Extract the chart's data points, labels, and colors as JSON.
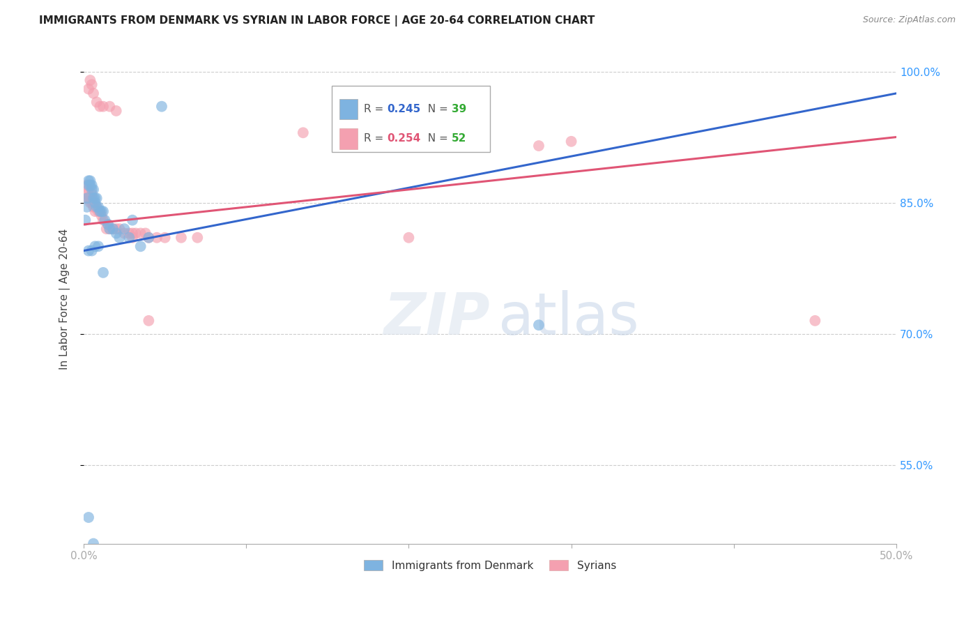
{
  "title": "IMMIGRANTS FROM DENMARK VS SYRIAN IN LABOR FORCE | AGE 20-64 CORRELATION CHART",
  "source": "Source: ZipAtlas.com",
  "ylabel": "In Labor Force | Age 20-64",
  "xlim": [
    0.0,
    0.5
  ],
  "ylim": [
    0.46,
    1.02
  ],
  "ytick_labels": [
    "100.0%",
    "85.0%",
    "70.0%",
    "55.0%"
  ],
  "ytick_positions": [
    1.0,
    0.85,
    0.7,
    0.55
  ],
  "xtick_positions": [
    0.0,
    0.1,
    0.2,
    0.3,
    0.4,
    0.5
  ],
  "xtick_labels": [
    "0.0%",
    "",
    "",
    "",
    "",
    "50.0%"
  ],
  "grid_color": "#cccccc",
  "background_color": "#ffffff",
  "denmark_color": "#7eb3e0",
  "syrian_color": "#f4a0b0",
  "denmark_line_color": "#3366cc",
  "syrian_line_color": "#e05575",
  "denmark_R": 0.245,
  "denmark_N": 39,
  "syrian_R": 0.254,
  "syrian_N": 52,
  "denmark_line_x": [
    0.0,
    0.5
  ],
  "denmark_line_y": [
    0.795,
    0.975
  ],
  "syrian_line_x": [
    0.0,
    0.5
  ],
  "syrian_line_y": [
    0.825,
    0.925
  ],
  "denmark_scatter_x": [
    0.001,
    0.002,
    0.002,
    0.003,
    0.003,
    0.004,
    0.004,
    0.005,
    0.005,
    0.006,
    0.006,
    0.007,
    0.007,
    0.008,
    0.008,
    0.009,
    0.01,
    0.011,
    0.012,
    0.013,
    0.015,
    0.016,
    0.018,
    0.02,
    0.022,
    0.025,
    0.028,
    0.03,
    0.035,
    0.04,
    0.048,
    0.003,
    0.005,
    0.007,
    0.009,
    0.012,
    0.003,
    0.006,
    0.28
  ],
  "denmark_scatter_y": [
    0.83,
    0.855,
    0.845,
    0.87,
    0.875,
    0.87,
    0.875,
    0.865,
    0.87,
    0.855,
    0.865,
    0.85,
    0.855,
    0.845,
    0.855,
    0.845,
    0.84,
    0.84,
    0.84,
    0.83,
    0.825,
    0.82,
    0.82,
    0.815,
    0.81,
    0.82,
    0.81,
    0.83,
    0.8,
    0.81,
    0.96,
    0.795,
    0.795,
    0.8,
    0.8,
    0.77,
    0.49,
    0.46,
    0.71
  ],
  "syrian_scatter_x": [
    0.001,
    0.002,
    0.002,
    0.003,
    0.003,
    0.004,
    0.004,
    0.005,
    0.005,
    0.005,
    0.006,
    0.006,
    0.007,
    0.007,
    0.008,
    0.009,
    0.01,
    0.011,
    0.012,
    0.014,
    0.015,
    0.016,
    0.018,
    0.02,
    0.022,
    0.025,
    0.028,
    0.03,
    0.032,
    0.035,
    0.038,
    0.04,
    0.045,
    0.05,
    0.06,
    0.07,
    0.28,
    0.3,
    0.003,
    0.004,
    0.005,
    0.006,
    0.008,
    0.01,
    0.012,
    0.016,
    0.02,
    0.03,
    0.04,
    0.45,
    0.135,
    0.2
  ],
  "syrian_scatter_y": [
    0.855,
    0.86,
    0.87,
    0.855,
    0.865,
    0.855,
    0.85,
    0.85,
    0.855,
    0.86,
    0.845,
    0.85,
    0.84,
    0.845,
    0.845,
    0.84,
    0.84,
    0.835,
    0.83,
    0.82,
    0.825,
    0.82,
    0.82,
    0.82,
    0.82,
    0.815,
    0.815,
    0.815,
    0.815,
    0.815,
    0.815,
    0.81,
    0.81,
    0.81,
    0.81,
    0.81,
    0.915,
    0.92,
    0.98,
    0.99,
    0.985,
    0.975,
    0.965,
    0.96,
    0.96,
    0.96,
    0.955,
    0.81,
    0.715,
    0.715,
    0.93,
    0.81
  ]
}
